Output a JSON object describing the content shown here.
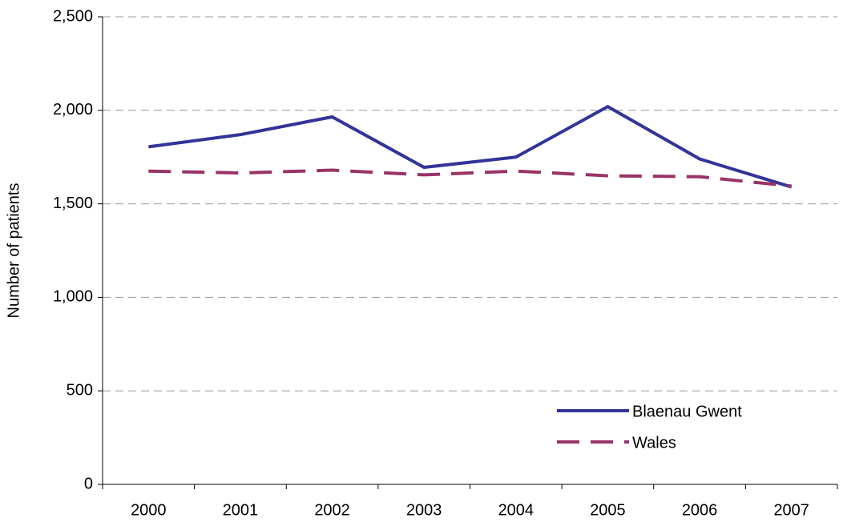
{
  "chart_data": {
    "type": "line",
    "y_label": "Number of patients",
    "categories": [
      "2000",
      "2001",
      "2002",
      "2003",
      "2004",
      "2005",
      "2006",
      "2007"
    ],
    "series": [
      {
        "name": "Blaenau Gwent",
        "color": "#333399",
        "dash": false,
        "values": [
          1805,
          1870,
          1965,
          1695,
          1750,
          2020,
          1740,
          1590
        ]
      },
      {
        "name": "Wales",
        "color": "#993366",
        "dash": true,
        "values": [
          1675,
          1665,
          1680,
          1655,
          1675,
          1650,
          1645,
          1595
        ]
      }
    ],
    "ylim": [
      0,
      2500
    ],
    "yticks": [
      0,
      500,
      {
        "value": 1000,
        "label": "1,000"
      },
      {
        "value": 1500,
        "label": "1,500"
      },
      {
        "value": 2000,
        "label": "2,000"
      },
      {
        "value": 2500,
        "label": "2,500"
      }
    ],
    "grid": true
  }
}
